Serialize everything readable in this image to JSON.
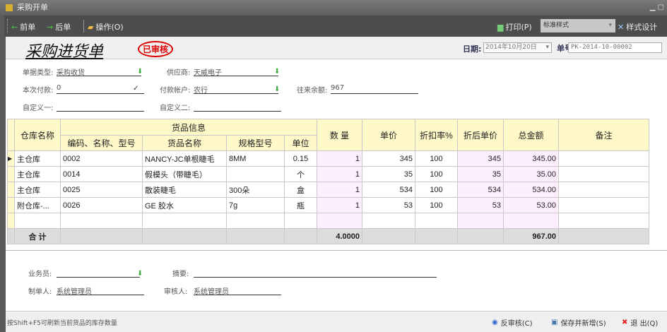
{
  "window": {
    "title": "采购开单"
  },
  "toolbar": {
    "prev": "前单",
    "next": "后单",
    "ops": "操作(O)",
    "print": "打印(P)",
    "style_select": "标准样式",
    "style_design": "样式设计"
  },
  "header": {
    "title": "采购进货单",
    "stamp": "已审核",
    "date_label": "日期:",
    "date_value": "2014年10月20日",
    "number_label": "单号:",
    "number_value": "PK-2014-10-00002"
  },
  "form": {
    "doc_type_label": "单据类型:",
    "doc_type": "采购收货",
    "supplier_label": "供应商:",
    "supplier": "天威电子",
    "payment_label": "本次付款:",
    "payment": "0",
    "account_label": "付款帐户:",
    "account": "农行",
    "balance_label": "往来余额:",
    "balance": "967",
    "custom1_label": "自定义一:",
    "custom1": "",
    "custom2_label": "自定义二:",
    "custom2": ""
  },
  "table": {
    "headers": {
      "warehouse": "仓库名称",
      "goods_info": "货品信息",
      "code": "编码、名称、型号",
      "name": "货品名称",
      "spec": "规格型号",
      "unit": "单位",
      "qty": "数 量",
      "price": "单价",
      "discount": "折扣率%",
      "disc_price": "折后单价",
      "amount": "总金额",
      "remark": "备注"
    },
    "rows": [
      {
        "warehouse": "主仓库",
        "code": "0002",
        "name": "NANCY-JC单根睫毛",
        "spec": "8MM",
        "unit": "0.15",
        "qty": "1",
        "price": "345",
        "discount": "100",
        "disc_price": "345",
        "amount": "345.00",
        "remark": ""
      },
      {
        "warehouse": "主仓库",
        "code": "0014",
        "name": "假模头（带睫毛）",
        "spec": "",
        "unit": "个",
        "qty": "1",
        "price": "35",
        "discount": "100",
        "disc_price": "35",
        "amount": "35.00",
        "remark": ""
      },
      {
        "warehouse": "主仓库",
        "code": "0025",
        "name": "散装睫毛",
        "spec": "300朵",
        "unit": "盒",
        "qty": "1",
        "price": "534",
        "discount": "100",
        "disc_price": "534",
        "amount": "534.00",
        "remark": ""
      },
      {
        "warehouse": "附仓库-...",
        "code": "0026",
        "name": "GE 胶水",
        "spec": "7g",
        "unit": "瓶",
        "qty": "1",
        "price": "53",
        "discount": "100",
        "disc_price": "53",
        "amount": "53.00",
        "remark": ""
      }
    ],
    "total": {
      "label": "合 计",
      "qty": "4.0000",
      "amount": "967.00"
    }
  },
  "footer_form": {
    "salesman_label": "业务员:",
    "salesman": "",
    "summary_label": "摘要:",
    "summary": "",
    "maker_label": "制单人:",
    "maker": "系统管理员",
    "auditor_label": "审核人:",
    "auditor": "系统管理员"
  },
  "status": {
    "hint": "按Shift+F5可刷新当前货品的库存数量",
    "unaudit": "反审核(C)",
    "save_new": "保存并新增(S)",
    "exit": "退 出(Q)"
  }
}
